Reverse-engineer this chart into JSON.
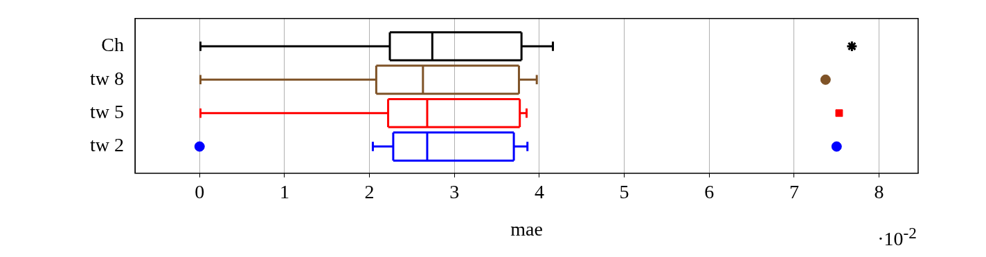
{
  "chart_data": {
    "type": "box",
    "orientation": "horizontal",
    "xlabel": "mae",
    "categories": [
      "Ch",
      "tw 8",
      "tw 5",
      "tw 2"
    ],
    "xlim": [
      -0.76,
      8.46
    ],
    "xticks": [
      0,
      1,
      2,
      3,
      4,
      5,
      6,
      7,
      8
    ],
    "grid": "x",
    "annotations": [
      "·10$^{-2}$"
    ],
    "series": [
      {
        "color": "#000000",
        "marker": "star",
        "boxes": [
          {
            "low": 0.01,
            "q1": 2.24,
            "median": 2.74,
            "q3": 3.79,
            "high": 4.16,
            "outliers": [
              7.68
            ]
          },
          null,
          null,
          null
        ]
      },
      {
        "color": "#7f5327",
        "marker": "circle",
        "boxes": [
          null,
          {
            "low": 0.01,
            "q1": 2.08,
            "median": 2.63,
            "q3": 3.76,
            "high": 3.97,
            "outliers": [
              7.37
            ]
          },
          null,
          null
        ]
      },
      {
        "color": "#ff0000",
        "marker": "square",
        "boxes": [
          null,
          null,
          {
            "low": 0.01,
            "q1": 2.22,
            "median": 2.68,
            "q3": 3.77,
            "high": 3.85,
            "outliers": [
              7.53
            ]
          },
          null
        ]
      },
      {
        "color": "#0000ff",
        "marker": "circle",
        "boxes": [
          null,
          null,
          null,
          {
            "low": 2.04,
            "q1": 2.28,
            "median": 2.68,
            "q3": 3.7,
            "high": 3.86,
            "outliers": [
              0.0,
              7.5
            ]
          }
        ]
      }
    ]
  }
}
